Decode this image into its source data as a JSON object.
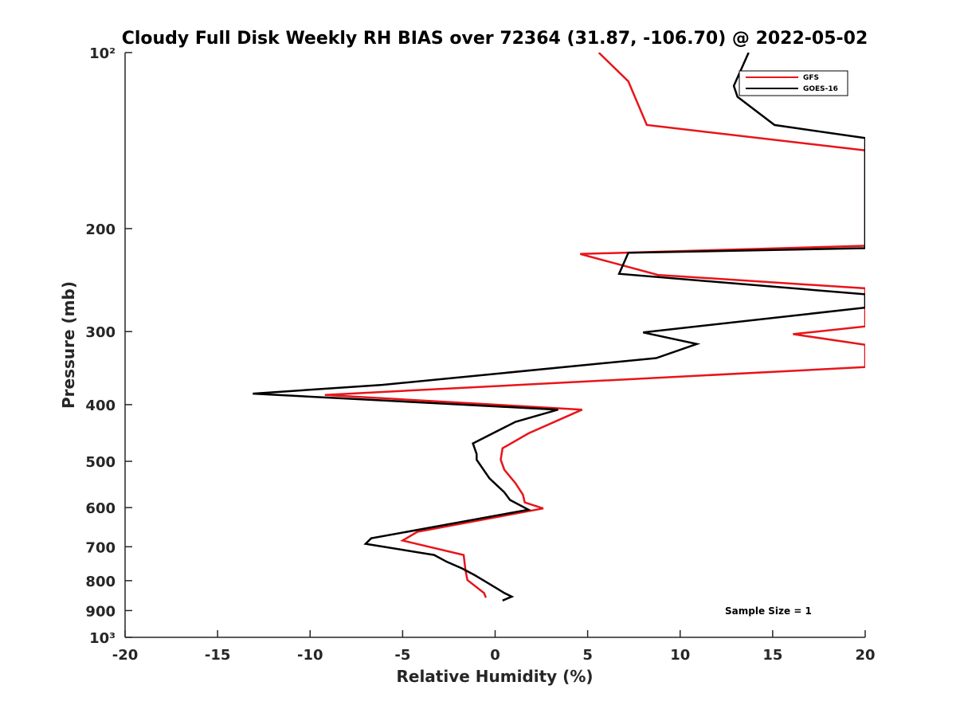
{
  "chart_data": {
    "type": "line",
    "title": "Cloudy Full Disk Weekly RH BIAS over 72364 (31.87, -106.70) @ 2022-05-02",
    "xlabel": "Relative Humidity (%)",
    "ylabel": "Pressure (mb)",
    "xlim": [
      -20,
      20
    ],
    "ylim": [
      100,
      1000
    ],
    "yscale": "log",
    "y_reversed": true,
    "grid": false,
    "legend_position": "top-right",
    "x_ticks": [
      -20,
      -15,
      -10,
      -5,
      0,
      5,
      10,
      15,
      20
    ],
    "x_tick_labels": [
      "-20",
      "-15",
      "-10",
      "-5",
      "0",
      "5",
      "10",
      "15",
      "20"
    ],
    "y_ticks": [
      100,
      200,
      300,
      400,
      500,
      600,
      700,
      800,
      900,
      1000
    ],
    "y_tick_labels": [
      "10²",
      "200",
      "300",
      "400",
      "500",
      "600",
      "700",
      "800",
      "900",
      "10³"
    ],
    "annotation": "Sample Size = 1",
    "series": [
      {
        "name": "GFS",
        "color": "#e8141a",
        "points": [
          [
            5.6,
            100
          ],
          [
            7.2,
            112
          ],
          [
            8.2,
            133
          ],
          [
            20,
            147
          ],
          [
            20,
            214
          ],
          [
            4.6,
            221
          ],
          [
            8.8,
            240
          ],
          [
            20,
            253
          ],
          [
            20,
            294
          ],
          [
            16.1,
            303
          ],
          [
            20,
            316
          ],
          [
            20,
            345
          ],
          [
            -9.2,
            385
          ],
          [
            4.7,
            408
          ],
          [
            1.8,
            448
          ],
          [
            0.4,
            475
          ],
          [
            0.3,
            497
          ],
          [
            0.5,
            517
          ],
          [
            1.1,
            545
          ],
          [
            1.5,
            570
          ],
          [
            1.6,
            588
          ],
          [
            2.6,
            602
          ],
          [
            -4.2,
            660
          ],
          [
            -5,
            683
          ],
          [
            -1.7,
            723
          ],
          [
            -1.6,
            768
          ],
          [
            -1.5,
            798
          ],
          [
            -0.6,
            840
          ],
          [
            -0.5,
            855
          ]
        ]
      },
      {
        "name": "GOES-16",
        "color": "#000000",
        "points": [
          [
            13.7,
            100
          ],
          [
            12.9,
            114
          ],
          [
            13.1,
            119
          ],
          [
            15.1,
            133
          ],
          [
            20,
            140
          ],
          [
            20,
            216
          ],
          [
            7.2,
            220
          ],
          [
            6.7,
            239
          ],
          [
            20,
            259
          ],
          [
            20,
            273
          ],
          [
            8,
            301
          ],
          [
            10.9,
            315
          ],
          [
            8.7,
            333
          ],
          [
            -6.1,
            370
          ],
          [
            -13.1,
            383
          ],
          [
            3.4,
            408
          ],
          [
            1.1,
            428
          ],
          [
            -1.2,
            466
          ],
          [
            -1,
            486
          ],
          [
            -1,
            497
          ],
          [
            -0.3,
            535
          ],
          [
            0.5,
            565
          ],
          [
            0.8,
            582
          ],
          [
            1.8,
            605
          ],
          [
            -6.7,
            677
          ],
          [
            -7,
            692
          ],
          [
            -3.3,
            723
          ],
          [
            -2.6,
            743
          ],
          [
            -1.8,
            762
          ],
          [
            -1.1,
            783
          ],
          [
            -0.6,
            800
          ],
          [
            0.1,
            825
          ],
          [
            0.5,
            840
          ],
          [
            0.9,
            852
          ],
          [
            0.4,
            865
          ]
        ]
      }
    ]
  }
}
